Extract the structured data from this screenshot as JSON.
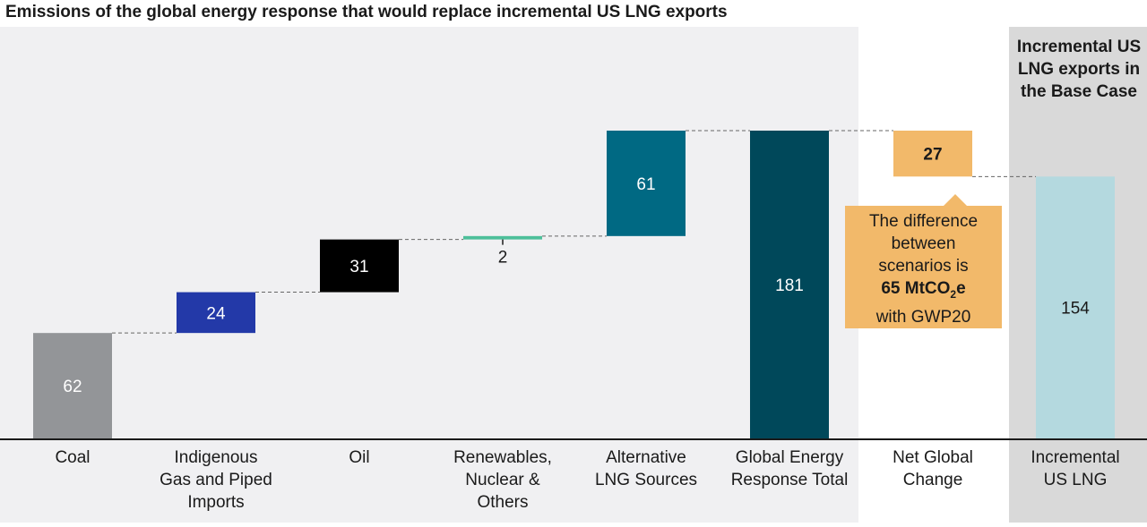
{
  "title": "Emissions of the global energy response that would replace incremental US LNG exports",
  "side_title": "Incremental US LNG exports in the Base Case",
  "callout": {
    "line1": "The difference",
    "line2": "between",
    "line3": "scenarios is",
    "value": "65 MtCO",
    "value_sub": "2",
    "value_tail": "e",
    "line5": "with GWP20"
  },
  "chart_data": {
    "type": "bar",
    "subtype": "waterfall",
    "title": "Emissions of the global energy response that would replace incremental US LNG exports",
    "categories": [
      "Coal",
      "Indigenous Gas and Piped Imports",
      "Oil",
      "Renewables, Nuclear & Others",
      "Alternative LNG Sources",
      "Global Energy Response Total",
      "Net Global Change",
      "Incremental US LNG"
    ],
    "category_labels": [
      [
        "Coal"
      ],
      [
        "Indigenous",
        "Gas and Piped",
        "Imports"
      ],
      [
        "Oil"
      ],
      [
        "Renewables,",
        "Nuclear &",
        "Others"
      ],
      [
        "Alternative",
        "LNG Sources"
      ],
      [
        "Global Energy",
        "Response Total"
      ],
      [
        "Net Global",
        "Change"
      ],
      [
        "Incremental",
        "US LNG"
      ]
    ],
    "bars": [
      {
        "category": "Coal",
        "start": 0,
        "end": 62,
        "value": 62,
        "label": "62",
        "color": "#939598"
      },
      {
        "category": "Indigenous Gas and Piped Imports",
        "start": 62,
        "end": 86,
        "value": 24,
        "label": "24",
        "color": "#2339a8"
      },
      {
        "category": "Oil",
        "start": 86,
        "end": 117,
        "value": 31,
        "label": "31",
        "color": "#000000"
      },
      {
        "category": "Renewables, Nuclear & Others",
        "start": 117,
        "end": 119,
        "value": 2,
        "label": "2",
        "color": "#4dbf9a"
      },
      {
        "category": "Alternative LNG Sources",
        "start": 119,
        "end": 181,
        "value": 61,
        "label": "61",
        "color": "#006983"
      },
      {
        "category": "Global Energy Response Total",
        "start": 0,
        "end": 181,
        "value": 181,
        "label": "181",
        "color": "#00485a"
      },
      {
        "category": "Net Global Change",
        "start": 154,
        "end": 181,
        "value": 27,
        "label": "27",
        "color": "#f2b96a"
      },
      {
        "category": "Incremental US LNG",
        "start": 0,
        "end": 154,
        "value": 154,
        "label": "154",
        "color": "#b4d9df"
      }
    ],
    "ylim": [
      0,
      181
    ],
    "xlabel": "",
    "ylabel": ""
  }
}
